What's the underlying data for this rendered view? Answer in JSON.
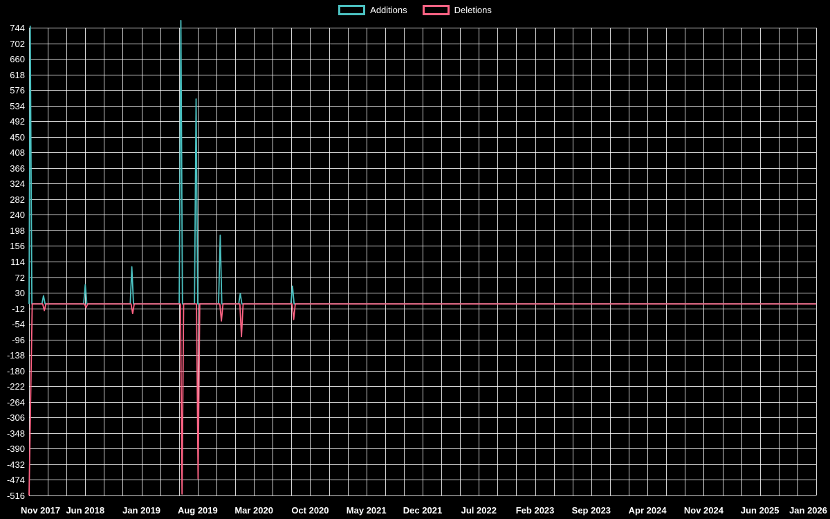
{
  "page": {
    "background": "#000000"
  },
  "legend": {
    "items": [
      {
        "label": "Additions",
        "color": "#4bc0c0"
      },
      {
        "label": "Deletions",
        "color": "#ff6384"
      }
    ]
  },
  "style": {
    "text_color": "#ffffff",
    "grid_color": "rgba(255,255,255,0.82)",
    "accent_teal": "#4bc0c0",
    "accent_pink": "#ff6384"
  },
  "chart_data": {
    "type": "line",
    "title": "",
    "xlabel": "",
    "ylabel": "",
    "legend_position": "top-center",
    "grid": {
      "show": true,
      "minor_x_divisions": 3
    },
    "x_axis": {
      "unit": "months since Nov 2017",
      "months_per_tick": 7,
      "total_months": 98,
      "tick_labels": [
        "Nov 2017",
        "Jun 2018",
        "Jan 2019",
        "Aug 2019",
        "Mar 2020",
        "Oct 2020",
        "May 2021",
        "Dec 2021",
        "Jul 2022",
        "Feb 2023",
        "Sep 2023",
        "Apr 2024",
        "Nov 2024",
        "Jun 2025",
        "Jan 2026"
      ]
    },
    "y_axis": {
      "min": -516,
      "max": 744,
      "step": 42,
      "tick_labels": [
        744,
        702,
        660,
        618,
        576,
        534,
        492,
        450,
        408,
        366,
        324,
        282,
        240,
        198,
        156,
        114,
        72,
        30,
        -12,
        -54,
        -96,
        -138,
        -180,
        -222,
        -264,
        -306,
        -348,
        -390,
        -432,
        -474,
        -516
      ]
    },
    "series": [
      {
        "name": "Additions",
        "color": "#4bc0c0",
        "points": [
          [
            0,
            0
          ],
          [
            0.15,
            748
          ],
          [
            0.35,
            0
          ],
          [
            1.6,
            0
          ],
          [
            1.8,
            22
          ],
          [
            2.0,
            0
          ],
          [
            6.8,
            0
          ],
          [
            7.0,
            52
          ],
          [
            7.2,
            0
          ],
          [
            12.6,
            0
          ],
          [
            12.8,
            100
          ],
          [
            13.0,
            0
          ],
          [
            18.7,
            0
          ],
          [
            18.9,
            763
          ],
          [
            19.1,
            0
          ],
          [
            20.6,
            0
          ],
          [
            20.8,
            552
          ],
          [
            21.0,
            0
          ],
          [
            23.6,
            0
          ],
          [
            23.8,
            185
          ],
          [
            24.0,
            0
          ],
          [
            26.1,
            0
          ],
          [
            26.3,
            28
          ],
          [
            26.5,
            0
          ],
          [
            32.6,
            0
          ],
          [
            32.8,
            48
          ],
          [
            33.0,
            0
          ],
          [
            98,
            0
          ]
        ]
      },
      {
        "name": "Deletions",
        "color": "#ff6384",
        "points": [
          [
            0,
            -516
          ],
          [
            0.4,
            0
          ],
          [
            1.7,
            0
          ],
          [
            1.9,
            -18
          ],
          [
            2.1,
            0
          ],
          [
            6.9,
            0
          ],
          [
            7.1,
            -10
          ],
          [
            7.3,
            0
          ],
          [
            12.7,
            0
          ],
          [
            12.9,
            -26
          ],
          [
            13.1,
            0
          ],
          [
            18.85,
            0
          ],
          [
            19.05,
            -512
          ],
          [
            19.25,
            0
          ],
          [
            20.85,
            0
          ],
          [
            21.05,
            -471
          ],
          [
            21.25,
            0
          ],
          [
            23.75,
            0
          ],
          [
            23.95,
            -46
          ],
          [
            24.15,
            0
          ],
          [
            26.25,
            0
          ],
          [
            26.45,
            -88
          ],
          [
            26.65,
            0
          ],
          [
            32.75,
            0
          ],
          [
            32.95,
            -42
          ],
          [
            33.15,
            0
          ],
          [
            98,
            0
          ]
        ]
      }
    ]
  }
}
